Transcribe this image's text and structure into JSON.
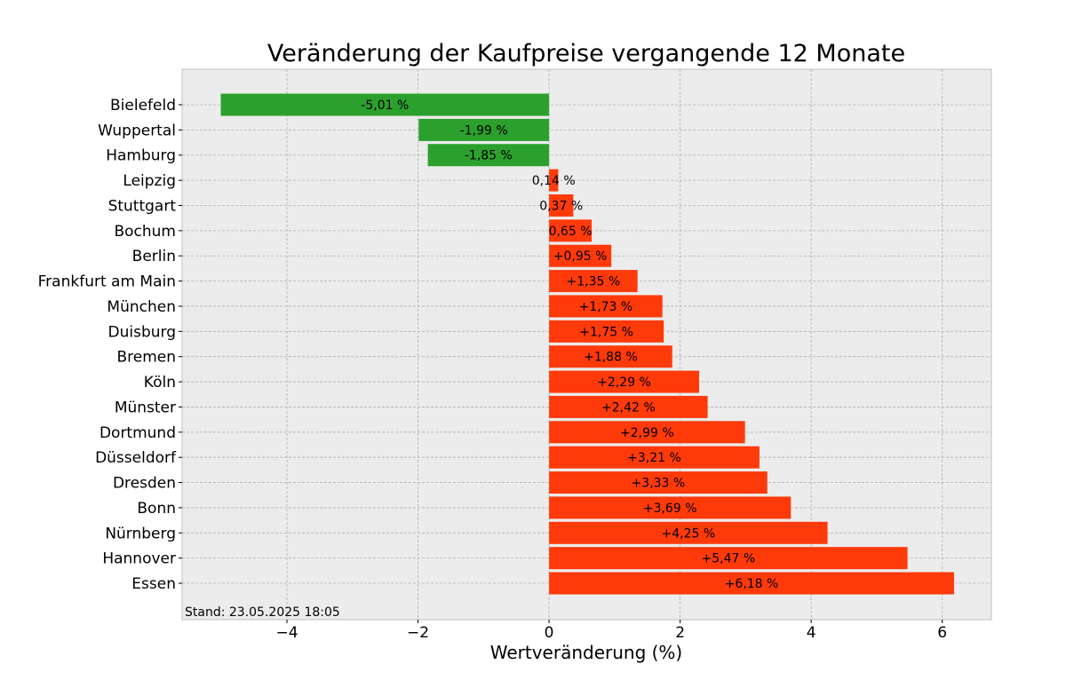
{
  "chart_data": {
    "type": "bar",
    "orientation": "horizontal",
    "title": "Veränderung der Kaufpreise vergangende 12 Monate",
    "xlabel": "Wertveränderung (%)",
    "ylabel": "",
    "xlim": [
      -5.6,
      6.75
    ],
    "xticks": [
      -4,
      -2,
      0,
      2,
      4,
      6
    ],
    "xtick_labels": [
      "−4",
      "−2",
      "0",
      "2",
      "4",
      "6"
    ],
    "grid": true,
    "colors": {
      "negative": "#2ca02c",
      "positive": "#ff3a0a",
      "background": "#ececec",
      "grid": "#b0b0b0"
    },
    "categories": [
      "Bielefeld",
      "Wuppertal",
      "Hamburg",
      "Leipzig",
      "Stuttgart",
      "Bochum",
      "Berlin",
      "Frankfurt am Main",
      "München",
      "Duisburg",
      "Bremen",
      "Köln",
      "Münster",
      "Dortmund",
      "Düsseldorf",
      "Dresden",
      "Bonn",
      "Nürnberg",
      "Hannover",
      "Essen"
    ],
    "values": [
      -5.01,
      -1.99,
      -1.85,
      0.14,
      0.37,
      0.65,
      0.95,
      1.35,
      1.73,
      1.75,
      1.88,
      2.29,
      2.42,
      2.99,
      3.21,
      3.33,
      3.69,
      4.25,
      5.47,
      6.18
    ],
    "data_labels": [
      "-5,01 %",
      "-1,99 %",
      "-1,85 %",
      "0,14 %",
      "0,37 %",
      "0,65 %",
      "+0,95 %",
      "+1,35 %",
      "+1,73 %",
      "+1,75 %",
      "+1,88 %",
      "+2,29 %",
      "+2,42 %",
      "+2,99 %",
      "+3,21 %",
      "+3,33 %",
      "+3,69 %",
      "+4,25 %",
      "+5,47 %",
      "+6,18 %"
    ],
    "annotation": "Stand: 23.05.2025 18:05"
  }
}
